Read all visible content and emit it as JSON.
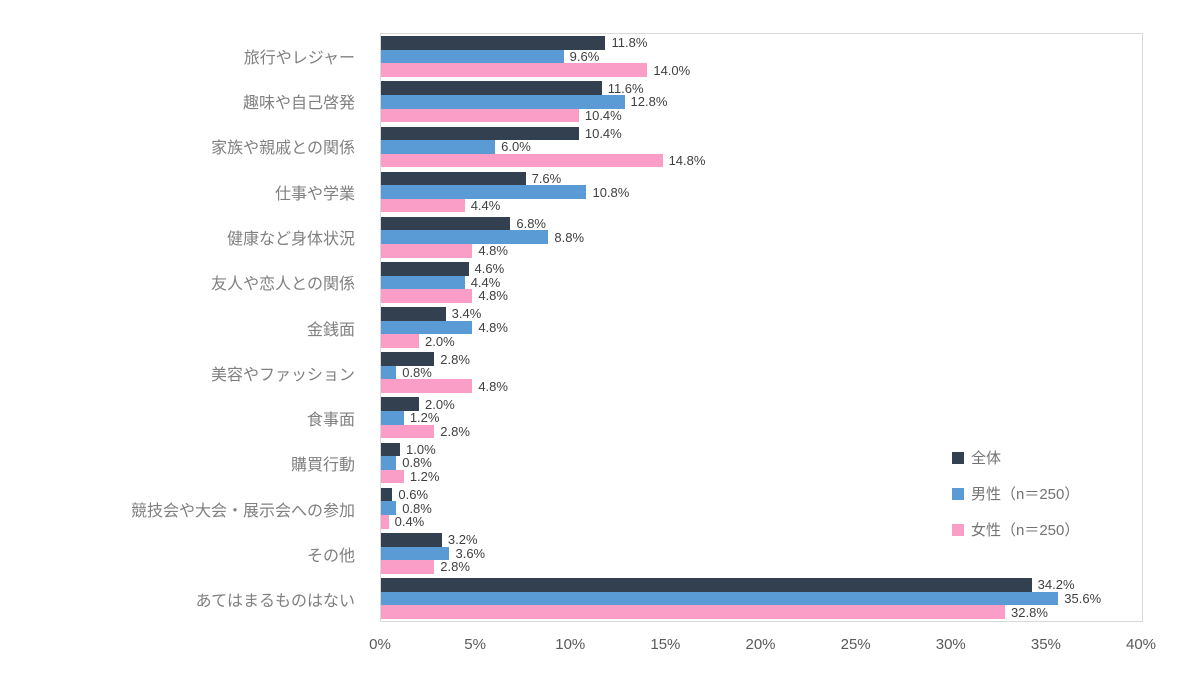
{
  "chart_data": {
    "type": "bar",
    "orientation": "horizontal",
    "title": "",
    "xlabel": "",
    "ylabel": "",
    "grid": false,
    "legend_position": "middle-right",
    "value_suffix": "%",
    "categories": [
      "旅行やレジャー",
      "趣味や自己啓発",
      "家族や親戚との関係",
      "仕事や学業",
      "健康など身体状況",
      "友人や恋人との関係",
      "金銭面",
      "美容やファッション",
      "食事面",
      "購買行動",
      "競技会や大会・展示会への参加",
      "その他",
      "あてはまるものはない"
    ],
    "series": [
      {
        "name": "全体",
        "color": "#334050",
        "values": [
          11.8,
          11.6,
          10.4,
          7.6,
          6.8,
          4.6,
          3.4,
          2.8,
          2.0,
          1.0,
          0.6,
          3.2,
          34.2
        ]
      },
      {
        "name": "男性（n＝250）",
        "color": "#5B9BD5",
        "values": [
          9.6,
          12.8,
          6.0,
          10.8,
          8.8,
          4.4,
          4.8,
          0.8,
          1.2,
          0.8,
          0.8,
          3.6,
          35.6
        ]
      },
      {
        "name": "女性（n＝250）",
        "color": "#FA9DC7",
        "values": [
          14.0,
          10.4,
          14.8,
          4.4,
          4.8,
          4.8,
          2.0,
          4.8,
          2.8,
          1.2,
          0.4,
          2.8,
          32.8
        ]
      }
    ],
    "x_axis": {
      "min": 0,
      "max": 40,
      "tick_step": 5,
      "ticks": [
        "0%",
        "5%",
        "10%",
        "15%",
        "20%",
        "25%",
        "30%",
        "35%",
        "40%"
      ]
    },
    "colors": {
      "plot_border": "#D9D9D9",
      "category_label": "#808080",
      "axis_label": "#595959",
      "value_label": "#404040",
      "legend_label": "#737373",
      "background": "#FFFFFF"
    }
  }
}
